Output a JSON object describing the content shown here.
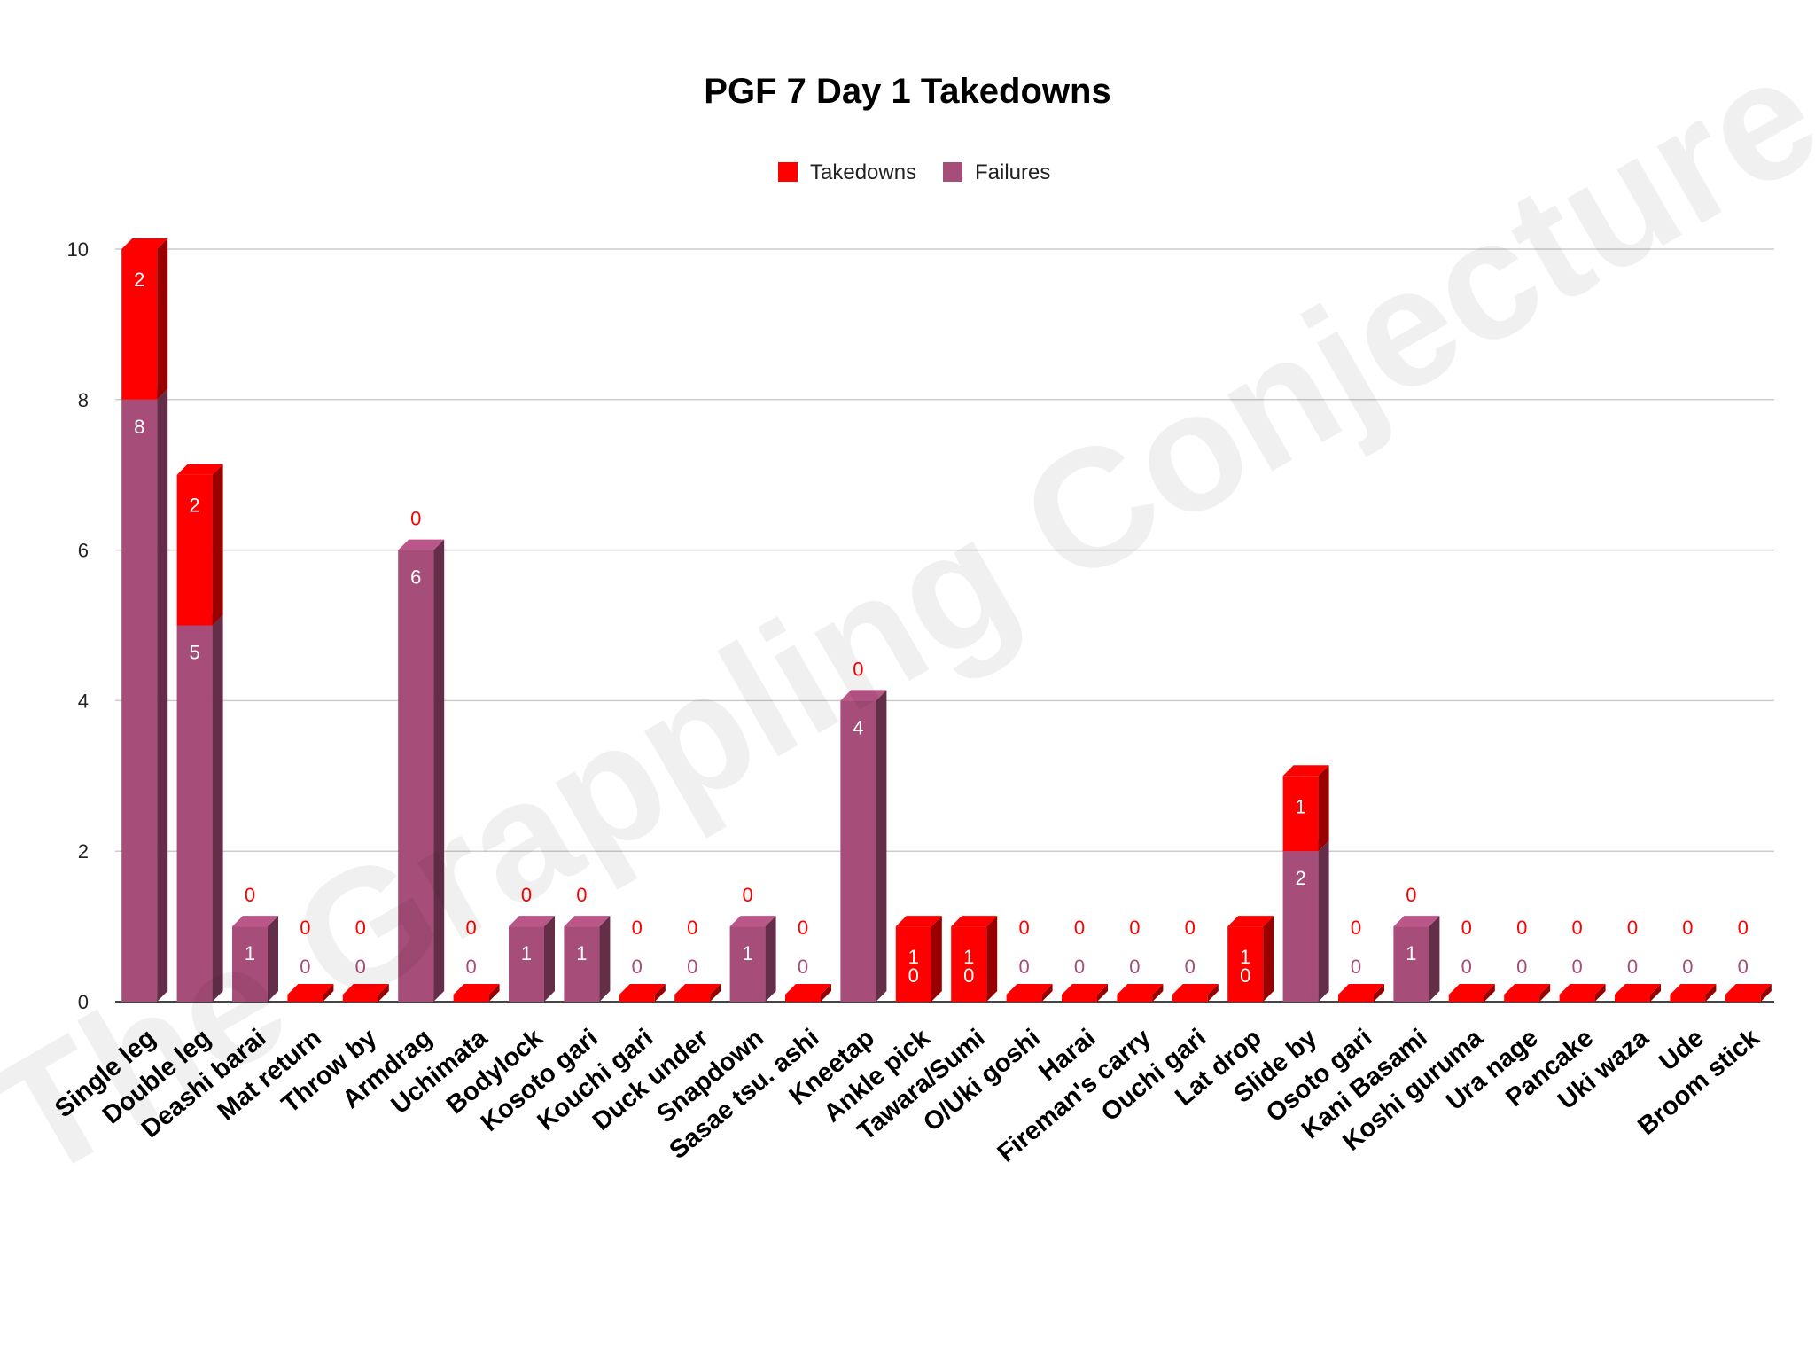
{
  "chart_data": {
    "type": "bar",
    "stacked": true,
    "three_d": true,
    "title": "PGF 7 Day 1 Takedowns",
    "xlabel": "",
    "ylabel": "",
    "ylim": [
      0,
      10
    ],
    "yticks": [
      0,
      2,
      4,
      6,
      8,
      10
    ],
    "grid": true,
    "legend_position": "top-center",
    "categories": [
      "Single leg",
      "Double leg",
      "Deashi barai",
      "Mat return",
      "Throw by",
      "Armdrag",
      "Uchimata",
      "Bodylock",
      "Kosoto gari",
      "Kouchi gari",
      "Duck under",
      "Snapdown",
      "Sasae tsu. ashi",
      "Kneetap",
      "Ankle pick",
      "Tawara/Sumi",
      "O/Uki goshi",
      "Harai",
      "Fireman's carry",
      "Ouchi gari",
      "Lat drop",
      "Slide by",
      "Osoto gari",
      "Kani Basami",
      "Koshi guruma",
      "Ura nage",
      "Pancake",
      "Uki waza",
      "Ude",
      "Broom stick"
    ],
    "series": [
      {
        "name": "Failures",
        "color": "#a64d79",
        "values": [
          8,
          5,
          1,
          0,
          0,
          6,
          0,
          1,
          1,
          0,
          0,
          1,
          0,
          4,
          0,
          0,
          0,
          0,
          0,
          0,
          0,
          2,
          0,
          1,
          0,
          0,
          0,
          0,
          0,
          0
        ]
      },
      {
        "name": "Takedowns",
        "color": "#ff0000",
        "values": [
          2,
          2,
          0,
          0,
          0,
          0,
          0,
          0,
          0,
          0,
          0,
          0,
          0,
          0,
          1,
          1,
          0,
          0,
          0,
          0,
          1,
          1,
          0,
          0,
          0,
          0,
          0,
          0,
          0,
          0
        ]
      }
    ],
    "legend": [
      {
        "name": "Takedowns",
        "color": "#ff0000"
      },
      {
        "name": "Failures",
        "color": "#a64d79"
      }
    ]
  },
  "watermark": "The Grappling Conjecture"
}
